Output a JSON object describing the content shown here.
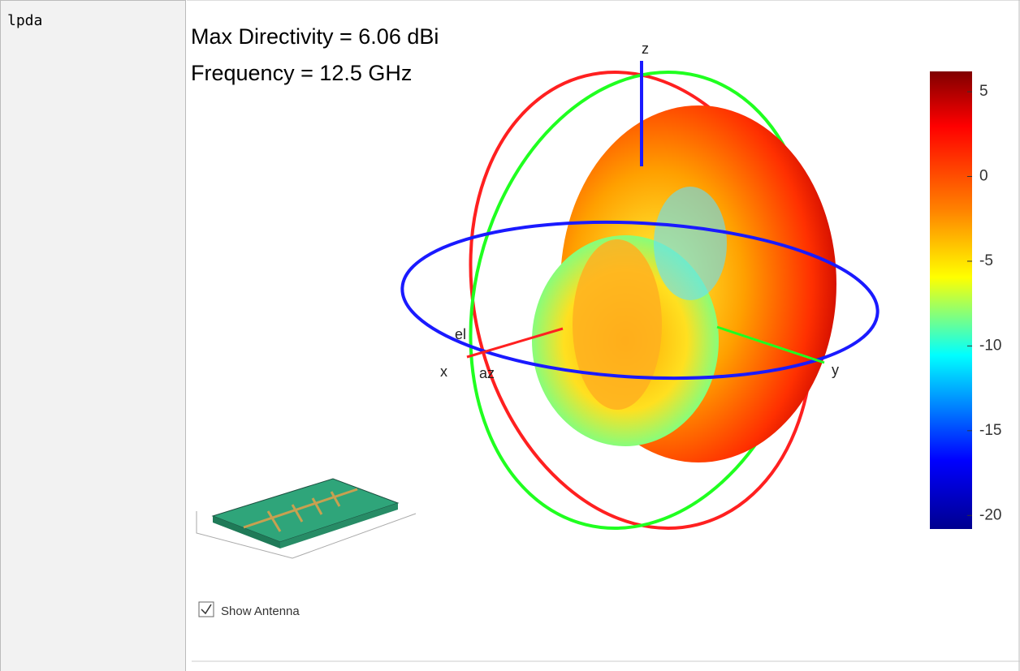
{
  "cell_label": "lpda",
  "figure": {
    "title_lines": [
      "Max Directivity = 6.06 dBi",
      "Frequency = 12.5 GHz"
    ],
    "axis_labels": {
      "x": "x",
      "y": "y",
      "z": "z",
      "el": "el",
      "az": "az"
    },
    "colorbar": {
      "lim": [
        -20.8,
        6.2
      ],
      "ticks": [
        5,
        0,
        -5,
        -10,
        -15,
        -20
      ]
    },
    "checkbox": {
      "label": "Show Antenna",
      "checked": true
    }
  }
}
